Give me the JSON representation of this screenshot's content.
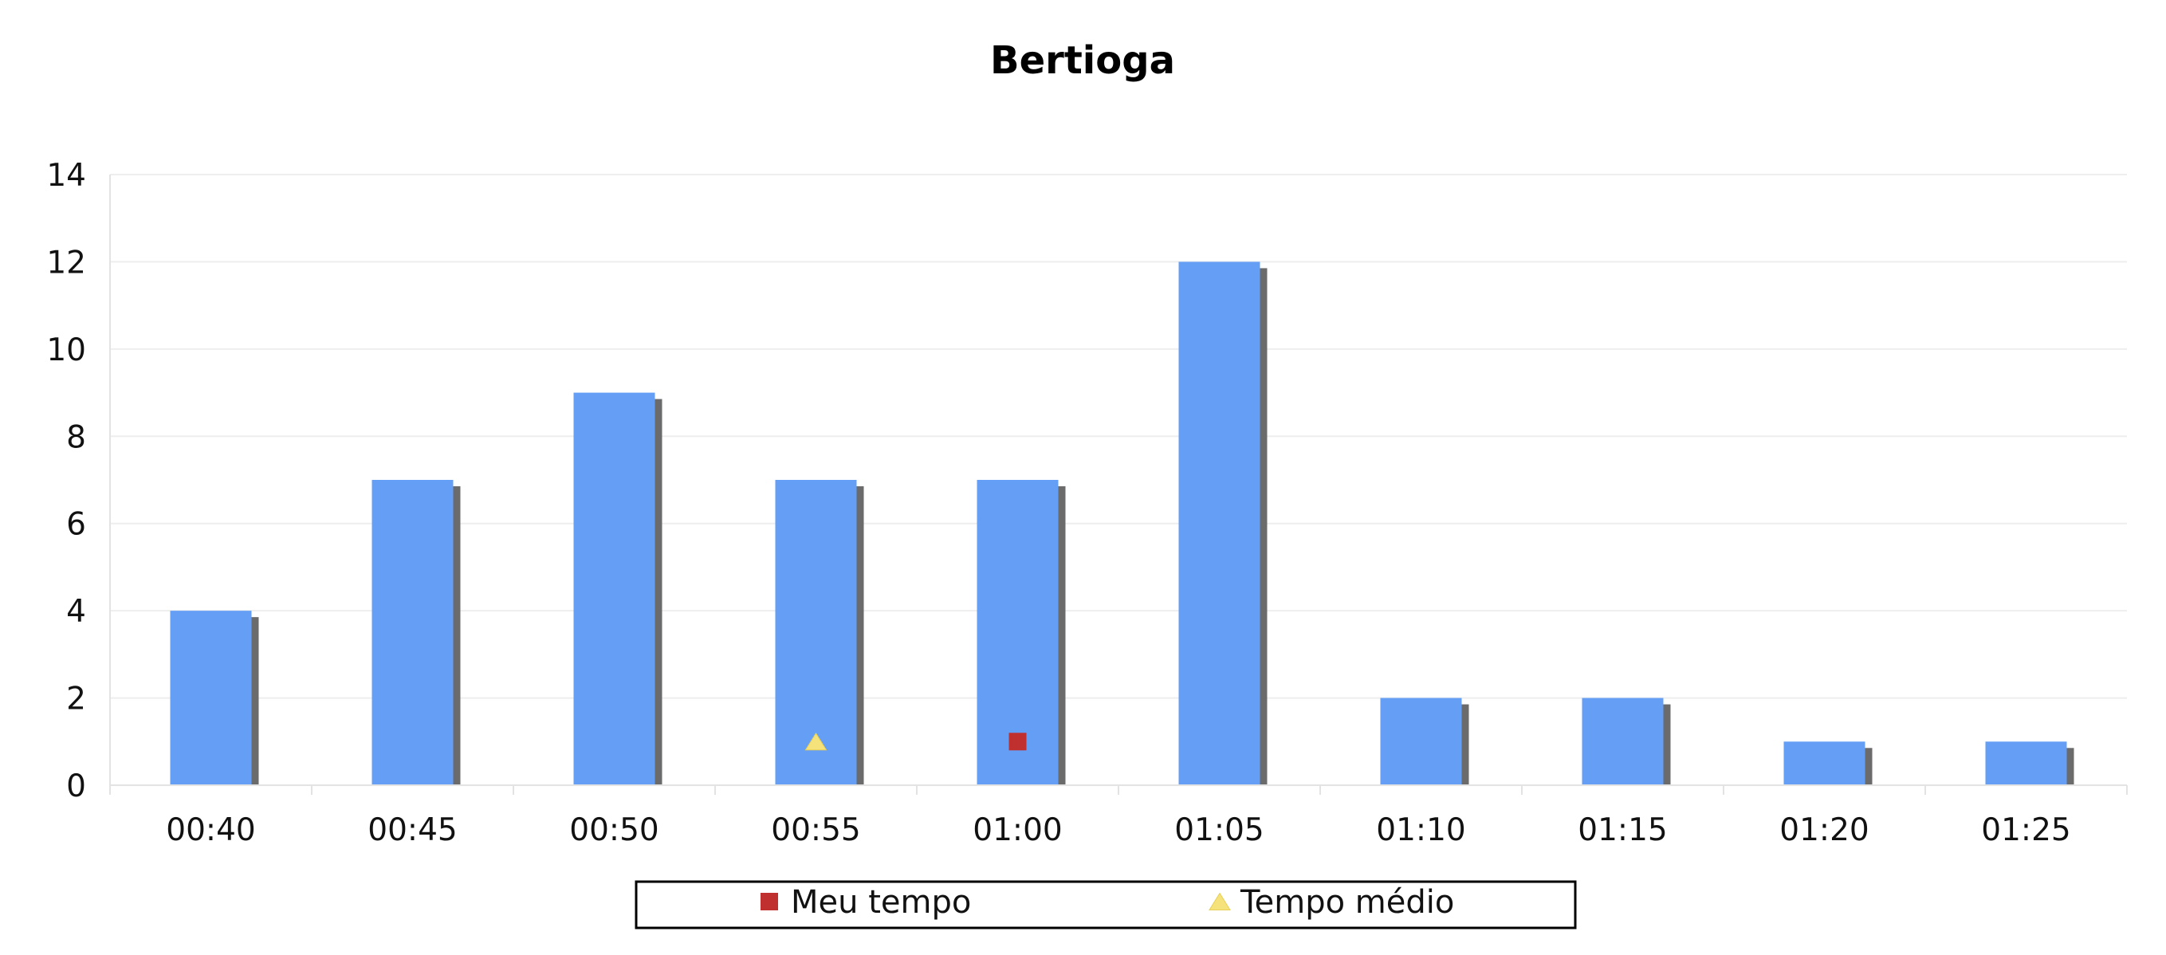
{
  "chart_data": {
    "type": "bar",
    "title": "Bertioga",
    "xlabel": "",
    "ylabel": "",
    "categories": [
      "00:40",
      "00:45",
      "00:50",
      "00:55",
      "01:00",
      "01:05",
      "01:10",
      "01:15",
      "01:20",
      "01:25"
    ],
    "values": [
      4,
      7,
      9,
      7,
      7,
      12,
      2,
      2,
      1,
      1
    ],
    "ylim": [
      0,
      14
    ],
    "yticks": [
      "0",
      "2",
      "4",
      "6",
      "8",
      "10",
      "12",
      "14"
    ],
    "grid": true,
    "legend_position": "bottom",
    "markers": [
      {
        "name": "Meu tempo",
        "shape": "square",
        "category": "01:00",
        "value": 1,
        "color": "#c0302e"
      },
      {
        "name": "Tempo médio",
        "shape": "triangle",
        "category": "00:55",
        "value": 1,
        "color": "#f5e27a"
      }
    ],
    "colors": {
      "bar": "#659ef5",
      "bar_shadow": "#6b6b6b",
      "grid": "#eeeeee",
      "axis": "#e3e3e3",
      "legend_border": "#000000"
    }
  }
}
